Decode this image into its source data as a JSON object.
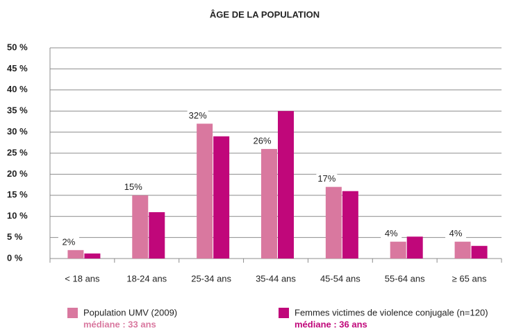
{
  "chart_data": {
    "type": "bar",
    "title": "ÂGE DE LA POPULATION",
    "categories": [
      "< 18 ans",
      "18-24 ans",
      "25-34 ans",
      "35-44 ans",
      "45-54 ans",
      "55-64 ans",
      "≥ 65 ans"
    ],
    "series": [
      {
        "name": "Population UMV (2009)",
        "note": "médiane : 33 ans",
        "color": "#d9789f",
        "values": [
          2,
          15,
          32,
          26,
          17,
          4,
          4
        ],
        "value_labels": [
          "2%",
          "15%",
          "32%",
          "26%",
          "17%",
          "4%",
          "4%"
        ]
      },
      {
        "name": "Femmes victimes de violence conjugale (n=120)",
        "note": "médiane : 36 ans",
        "color": "#c0077a",
        "values": [
          1.2,
          11,
          29,
          35,
          16,
          5.2,
          3
        ]
      }
    ],
    "ylim": [
      0,
      50
    ],
    "yticks": [
      {
        "value": 0,
        "label": "0 %"
      },
      {
        "value": 5,
        "label": "5 %"
      },
      {
        "value": 10,
        "label": "10 %"
      },
      {
        "value": 15,
        "label": "15 %"
      },
      {
        "value": 20,
        "label": "20 %"
      },
      {
        "value": 25,
        "label": "25 %"
      },
      {
        "value": 30,
        "label": "30 %"
      },
      {
        "value": 35,
        "label": "35 %"
      },
      {
        "value": 40,
        "label": "40 %"
      },
      {
        "value": 45,
        "label": "45 %"
      },
      {
        "value": 50,
        "label": "50 %"
      }
    ],
    "grid": true
  }
}
